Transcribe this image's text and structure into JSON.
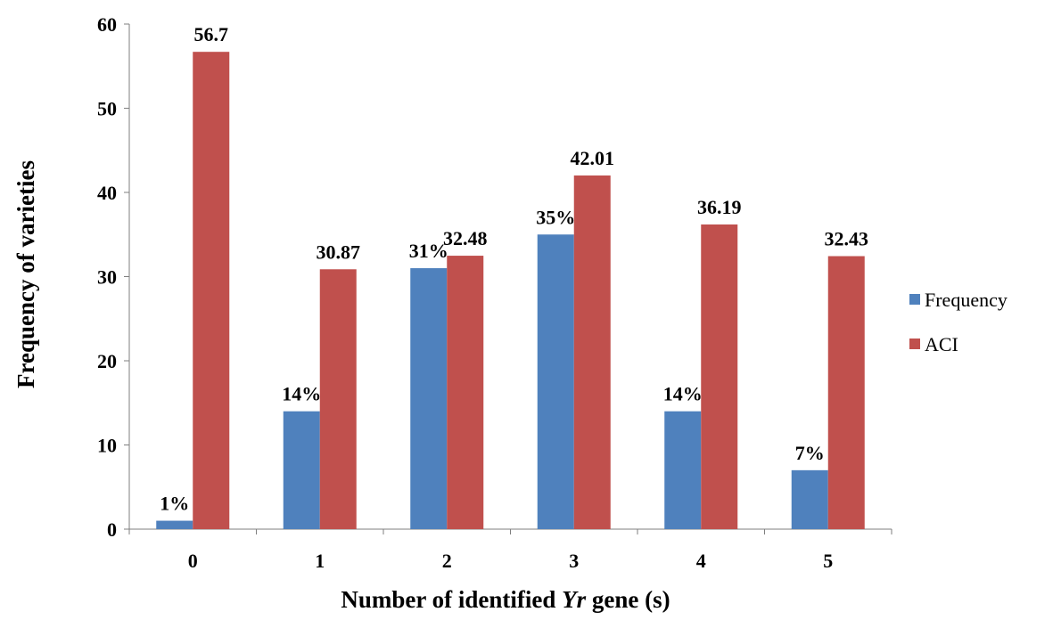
{
  "chart_data": {
    "type": "bar",
    "categories": [
      "0",
      "1",
      "2",
      "3",
      "4",
      "5"
    ],
    "series": [
      {
        "name": "Frequency",
        "values": [
          1,
          14,
          31,
          35,
          14,
          7
        ],
        "labels": [
          "1%",
          "14%",
          "31%",
          "35%",
          "14%",
          "7%"
        ],
        "color": "#4F81BD"
      },
      {
        "name": "ACI",
        "values": [
          56.7,
          30.87,
          32.48,
          42.01,
          36.19,
          32.43
        ],
        "labels": [
          "56.7",
          "30.87",
          "32.48",
          "42.01",
          "36.19",
          "32.43"
        ],
        "color": "#C0504D"
      }
    ],
    "xlabel_parts": [
      "Number of identified ",
      "Yr",
      " gene (s)"
    ],
    "ylabel": "Frequency of varieties",
    "ylim": [
      0,
      60
    ],
    "yticks": [
      0,
      10,
      20,
      30,
      40,
      50,
      60
    ],
    "grid": false,
    "legend_position": "right"
  }
}
